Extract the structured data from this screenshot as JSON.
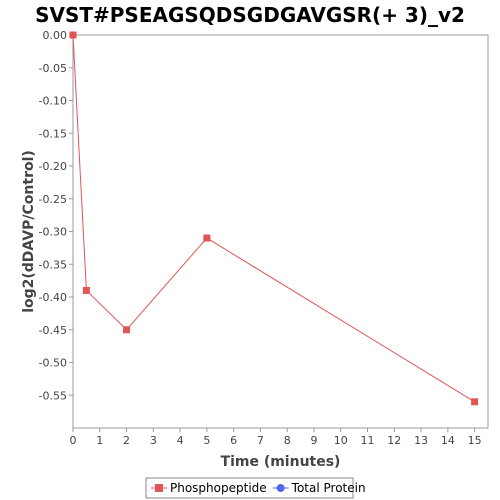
{
  "chart_data": {
    "type": "line",
    "title": "SVST#PSEAGSQDSGDGAVGSR(+ 3)_v2",
    "xlabel": "Time (minutes)",
    "ylabel": "log2(dDAVP/Control)",
    "xlim": [
      0,
      15.5
    ],
    "ylim": [
      -0.6,
      0.0
    ],
    "x_ticks": [
      0,
      1,
      2,
      3,
      4,
      5,
      6,
      7,
      8,
      9,
      10,
      11,
      12,
      13,
      14,
      15
    ],
    "y_ticks": [
      "0.00",
      "-0.05",
      "-0.10",
      "-0.15",
      "-0.20",
      "-0.25",
      "-0.30",
      "-0.35",
      "-0.40",
      "-0.45",
      "-0.50",
      "-0.55"
    ],
    "grid": false,
    "legend_position": "bottom",
    "series": [
      {
        "name": "Phosphopeptide",
        "color": "#e05555",
        "marker": "square",
        "points": [
          {
            "x": 0,
            "y": 0.0
          },
          {
            "x": 0.5,
            "y": -0.39
          },
          {
            "x": 2,
            "y": -0.45
          },
          {
            "x": 5,
            "y": -0.31
          },
          {
            "x": 15,
            "y": -0.56
          }
        ]
      },
      {
        "name": "Total Protein",
        "color": "#5566ee",
        "marker": "circle",
        "points": []
      }
    ]
  }
}
